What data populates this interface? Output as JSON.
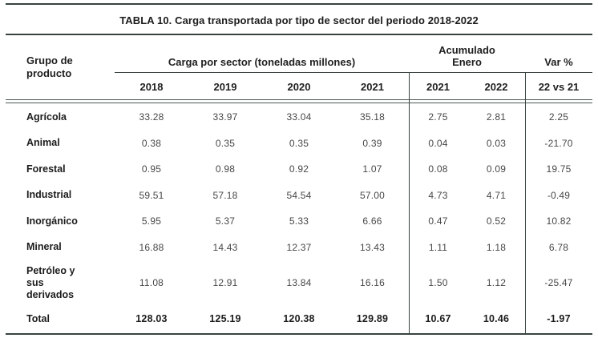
{
  "title": "TABLA 10. Carga transportada por tipo de sector del periodo 2018-2022",
  "header": {
    "product_group": "Grupo de\nproducto",
    "carga_group": "Carga por sector (toneladas millones)",
    "acumulado_group": "Acumulado\nEnero",
    "var_group": "Var %",
    "years_carga": [
      "2018",
      "2019",
      "2020",
      "2021"
    ],
    "years_acumulado": [
      "2021",
      "2022"
    ],
    "var_sub": "22 vs 21"
  },
  "rows": [
    {
      "label": "Agrícola",
      "cells": [
        "33.28",
        "33.97",
        "33.04",
        "35.18",
        "2.75",
        "2.81",
        "2.25"
      ]
    },
    {
      "label": "Animal",
      "cells": [
        "0.38",
        "0.35",
        "0.35",
        "0.39",
        "0.04",
        "0.03",
        "-21.70"
      ]
    },
    {
      "label": "Forestal",
      "cells": [
        "0.95",
        "0.98",
        "0.92",
        "1.07",
        "0.08",
        "0.09",
        "19.75"
      ]
    },
    {
      "label": "Industrial",
      "cells": [
        "59.51",
        "57.18",
        "54.54",
        "57.00",
        "4.73",
        "4.71",
        "-0.49"
      ]
    },
    {
      "label": "Inorgánico",
      "cells": [
        "5.95",
        "5.37",
        "5.33",
        "6.66",
        "0.47",
        "0.52",
        "10.82"
      ]
    },
    {
      "label": "Mineral",
      "cells": [
        "16.88",
        "14.43",
        "12.37",
        "13.43",
        "1.11",
        "1.18",
        "6.78"
      ]
    },
    {
      "label": "Petróleo y\nsus\nderivados",
      "cells": [
        "11.08",
        "12.91",
        "13.84",
        "16.16",
        "1.50",
        "1.12",
        "-25.47"
      ]
    },
    {
      "label": "Total",
      "cells": [
        "128.03",
        "125.19",
        "120.38",
        "129.89",
        "10.67",
        "10.46",
        "-1.97"
      ]
    }
  ],
  "colors": {
    "rule": "#39433f",
    "heading_text": "#1c1c1c",
    "value_text": "#474747",
    "background": "#ffffff"
  }
}
